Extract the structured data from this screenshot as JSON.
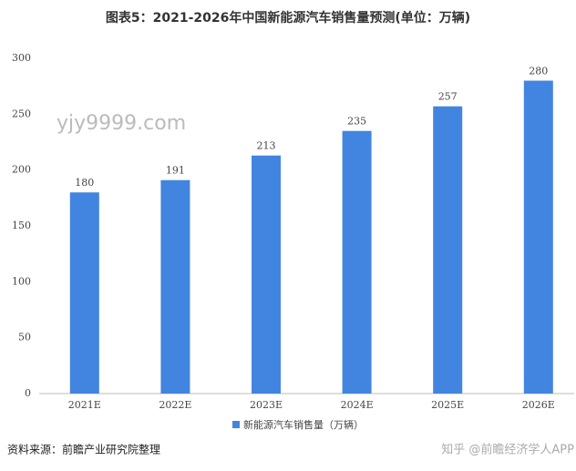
{
  "chart_data": {
    "type": "bar",
    "title": "图表5：2021-2026年中国新能源汽车销售量预测(单位：万辆)",
    "categories": [
      "2021E",
      "2022E",
      "2023E",
      "2024E",
      "2025E",
      "2026E"
    ],
    "series": [
      {
        "name": "新能源汽车销售量（万辆）",
        "color": "#4285e0",
        "values": [
          180,
          191,
          213,
          235,
          257,
          280
        ]
      }
    ],
    "ylim": [
      0,
      300
    ],
    "yticks": [
      0,
      50,
      100,
      150,
      200,
      250,
      300
    ],
    "grid": false,
    "legend": "bottom",
    "source": "资料来源：前瞻产业研究院整理",
    "watermarks": [
      "yjy9999.com",
      "知乎 @前瞻经济学人APP"
    ]
  }
}
